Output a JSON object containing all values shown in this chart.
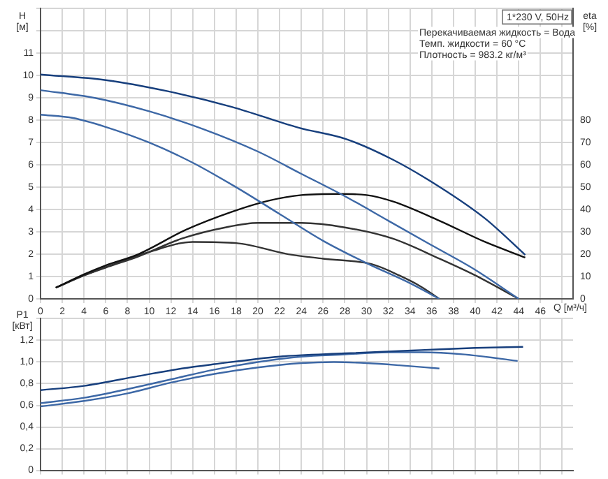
{
  "chart_data": [
    {
      "type": "line",
      "xlabel": "Q [м³/ч]",
      "ylabel": "H [м]",
      "y2label": "eta [%]",
      "annotations": [
        "1*230 V, 50Hz",
        "Перекачиваемая жидкость = Вода",
        "Темп. жидкости = 60 °C",
        "Плотность = 983.2 кг/м³"
      ],
      "grid": true,
      "legend": false,
      "marker": "none",
      "xlim": [
        0,
        49
      ],
      "xticks": [
        0,
        2,
        4,
        6,
        8,
        10,
        12,
        14,
        16,
        18,
        20,
        22,
        24,
        26,
        28,
        30,
        32,
        34,
        36,
        38,
        40,
        42,
        44,
        46,
        {
          "value": 48,
          "label": null
        }
      ],
      "ylim": [
        0,
        13
      ],
      "yticks": [
        0,
        1,
        2,
        3,
        4,
        5,
        6,
        7,
        8,
        9,
        10,
        11,
        {
          "value": 12,
          "label": null
        },
        {
          "value": 13,
          "label": null
        }
      ],
      "y2lim": [
        0,
        130
      ],
      "y2ticks": [
        0,
        10,
        20,
        30,
        40,
        50,
        60,
        70,
        80
      ],
      "series": [
        {
          "color": "#173f7d",
          "x": [
            0,
            6,
            11.7,
            17.6,
            23.8,
            28.1,
            32.4,
            36.7,
            40.9,
            44.6
          ],
          "values": [
            10.05,
            9.8,
            9.3,
            8.6,
            7.66,
            7.16,
            6.24,
            5.02,
            3.6,
            1.97
          ]
        },
        {
          "color": "#3d68a6",
          "x": [
            0,
            5,
            10,
            15,
            20,
            24,
            28,
            32,
            36,
            40,
            44
          ],
          "values": [
            9.35,
            9.0,
            8.4,
            7.6,
            6.6,
            5.6,
            4.6,
            3.5,
            2.4,
            1.3,
            0
          ]
        },
        {
          "color": "#3d68a6",
          "x": [
            0,
            3,
            6,
            10,
            14,
            18,
            22,
            26,
            30,
            34,
            36.7
          ],
          "values": [
            8.25,
            8.1,
            7.7,
            7.0,
            6.1,
            5.0,
            3.8,
            2.6,
            1.6,
            0.7,
            0
          ]
        },
        {
          "color": "#111111",
          "axis": "y2",
          "x": [
            1.4,
            4,
            6,
            9,
            13.4,
            17.6,
            21,
            24,
            27.5,
            30,
            32.5,
            36.7,
            40.9,
            44.6
          ],
          "values": [
            5,
            11,
            15,
            20,
            31,
            39,
            44,
            46.5,
            47,
            46.5,
            43.5,
            35,
            25.5,
            18.5
          ]
        },
        {
          "color": "#333333",
          "axis": "y2",
          "x": [
            1.4,
            4,
            6,
            9,
            13,
            17,
            20,
            24,
            28,
            32.4,
            36.7,
            40,
            44
          ],
          "values": [
            5,
            10.5,
            14,
            19,
            27,
            32,
            34,
            34,
            32,
            27,
            18,
            10.5,
            0
          ]
        },
        {
          "color": "#333333",
          "axis": "y2",
          "x": [
            1.4,
            4,
            7,
            10,
            14,
            18,
            22.8,
            26,
            30.5,
            33,
            35,
            36.7
          ],
          "values": [
            5,
            10.5,
            16,
            21,
            25.5,
            25,
            20,
            18,
            15.5,
            10.5,
            5.5,
            0
          ]
        }
      ]
    },
    {
      "type": "line",
      "ylabel": "P1 [кВт]",
      "grid": true,
      "legend": false,
      "marker": "none",
      "tick_labels": "y",
      "xlim": [
        0,
        49
      ],
      "xticks": [
        0,
        2,
        4,
        6,
        8,
        10,
        12,
        14,
        16,
        18,
        20,
        22,
        24,
        26,
        28,
        30,
        32,
        34,
        36,
        38,
        40,
        42,
        44,
        46,
        48
      ],
      "ylim": [
        0,
        1.4
      ],
      "yticks": [
        {
          "value": 0,
          "label": "0"
        },
        {
          "value": 0.2,
          "label": "0,2"
        },
        {
          "value": 0.4,
          "label": "0,4"
        },
        {
          "value": 0.6,
          "label": "0,6"
        },
        {
          "value": 0.8,
          "label": "0,8"
        },
        {
          "value": 1,
          "label": "1,0"
        },
        {
          "value": 1.2,
          "label": "1,2"
        },
        {
          "value": 1.4,
          "label": null
        }
      ],
      "series": [
        {
          "color": "#173f7d",
          "x": [
            0,
            4,
            9,
            13,
            16,
            22,
            28,
            35,
            40,
            44.4
          ],
          "values": [
            0.74,
            0.78,
            0.87,
            0.94,
            0.98,
            1.05,
            1.08,
            1.11,
            1.13,
            1.14
          ]
        },
        {
          "color": "#3d68a6",
          "x": [
            0,
            4,
            8,
            12,
            16,
            20,
            24,
            28,
            32,
            35,
            39,
            43.9
          ],
          "values": [
            0.62,
            0.67,
            0.75,
            0.84,
            0.93,
            1.0,
            1.05,
            1.07,
            1.09,
            1.09,
            1.07,
            1.01
          ]
        },
        {
          "color": "#3d68a6",
          "x": [
            0,
            4,
            8,
            12,
            16,
            20,
            24,
            27,
            30,
            33,
            36.7
          ],
          "values": [
            0.59,
            0.64,
            0.71,
            0.81,
            0.89,
            0.95,
            0.99,
            1.0,
            0.99,
            0.97,
            0.94
          ]
        }
      ]
    }
  ]
}
